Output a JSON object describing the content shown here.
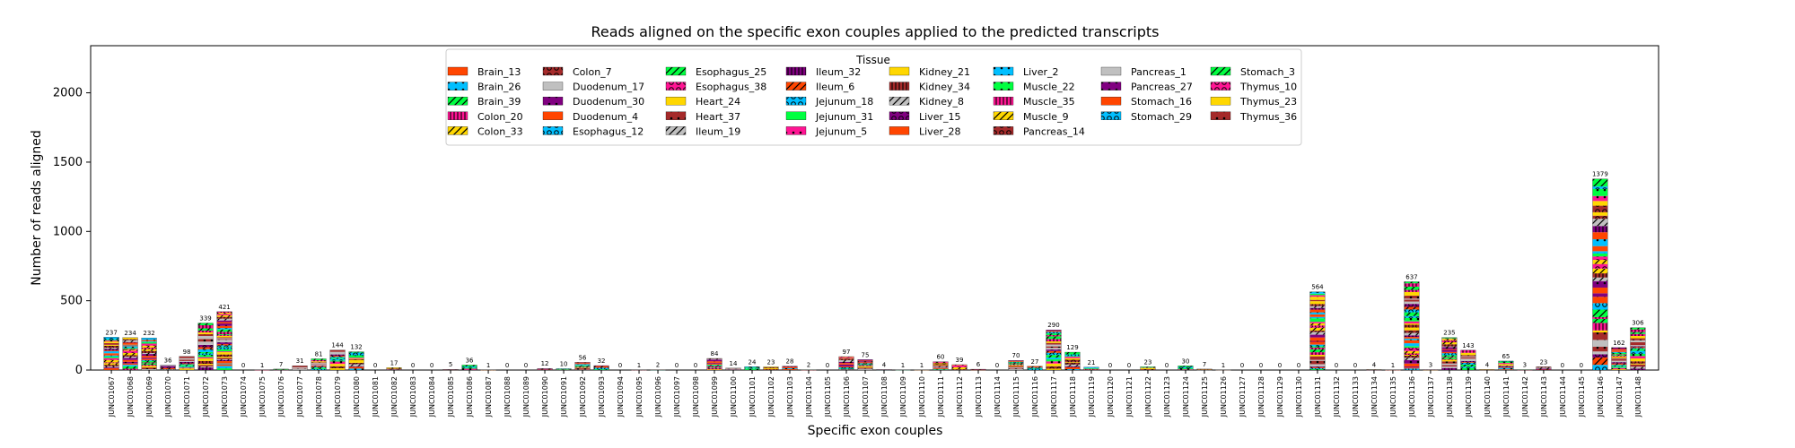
{
  "chart_data": {
    "type": "bar",
    "stacked": true,
    "title": "Reads aligned on the specific exon couples applied to the predicted transcripts",
    "xlabel": "Specific exon couples",
    "ylabel": "Number of reads aligned",
    "ylim": [
      0,
      2340
    ],
    "yticks": [
      0,
      500,
      1000,
      1500,
      2000
    ],
    "legend_title": "Tissue",
    "legend_position": "top-center",
    "categories": [
      "JUNC01067",
      "JUNC01068",
      "JUNC01069",
      "JUNC01070",
      "JUNC01071",
      "JUNC01072",
      "JUNC01073",
      "JUNC01074",
      "JUNC01075",
      "JUNC01076",
      "JUNC01077",
      "JUNC01078",
      "JUNC01079",
      "JUNC01080",
      "JUNC01081",
      "JUNC01082",
      "JUNC01083",
      "JUNC01084",
      "JUNC01085",
      "JUNC01086",
      "JUNC01087",
      "JUNC01088",
      "JUNC01089",
      "JUNC01090",
      "JUNC01091",
      "JUNC01092",
      "JUNC01093",
      "JUNC01094",
      "JUNC01095",
      "JUNC01096",
      "JUNC01097",
      "JUNC01098",
      "JUNC01099",
      "JUNC01100",
      "JUNC01101",
      "JUNC01102",
      "JUNC01103",
      "JUNC01104",
      "JUNC01105",
      "JUNC01106",
      "JUNC01107",
      "JUNC01108",
      "JUNC01109",
      "JUNC01110",
      "JUNC01111",
      "JUNC01112",
      "JUNC01113",
      "JUNC01114",
      "JUNC01115",
      "JUNC01116",
      "JUNC01117",
      "JUNC01118",
      "JUNC01119",
      "JUNC01120",
      "JUNC01121",
      "JUNC01122",
      "JUNC01123",
      "JUNC01124",
      "JUNC01125",
      "JUNC01126",
      "JUNC01127",
      "JUNC01128",
      "JUNC01129",
      "JUNC01130",
      "JUNC01131",
      "JUNC01132",
      "JUNC01133",
      "JUNC01134",
      "JUNC01135",
      "JUNC01136",
      "JUNC01137",
      "JUNC01138",
      "JUNC01139",
      "JUNC01140",
      "JUNC01141",
      "JUNC01142",
      "JUNC01143",
      "JUNC01144",
      "JUNC01145",
      "JUNC01146",
      "JUNC01147",
      "JUNC01148"
    ],
    "totals": [
      237,
      234,
      232,
      36,
      98,
      339,
      421,
      0,
      1,
      7,
      31,
      81,
      144,
      132,
      0,
      17,
      0,
      0,
      5,
      36,
      1,
      0,
      0,
      12,
      10,
      56,
      32,
      0,
      1,
      2,
      0,
      0,
      84,
      14,
      24,
      23,
      28,
      2,
      0,
      97,
      75,
      4,
      1,
      1,
      60,
      39,
      6,
      0,
      70,
      27,
      290,
      129,
      21,
      0,
      0,
      23,
      0,
      30,
      7,
      1,
      0,
      0,
      0,
      0,
      564,
      0,
      0,
      4,
      1,
      637,
      3,
      235,
      143,
      4,
      65,
      3,
      23,
      0,
      0,
      1379,
      162,
      306
    ],
    "series": [
      {
        "name": "Brain_13",
        "color": "#ff4500",
        "hatch": ""
      },
      {
        "name": "Brain_26",
        "color": "#00bfff",
        "hatch": "dot"
      },
      {
        "name": "Brain_39",
        "color": "#00ff40",
        "hatch": "slash"
      },
      {
        "name": "Colon_20",
        "color": "#ff1493",
        "hatch": "bar"
      },
      {
        "name": "Colon_33",
        "color": "#ffd700",
        "hatch": "slash"
      },
      {
        "name": "Colon_7",
        "color": "#a52a2a",
        "hatch": "ring"
      },
      {
        "name": "Duodenum_17",
        "color": "#c0c0c0",
        "hatch": ""
      },
      {
        "name": "Duodenum_30",
        "color": "#800080",
        "hatch": "dot"
      },
      {
        "name": "Duodenum_4",
        "color": "#ff4500",
        "hatch": ""
      },
      {
        "name": "Esophagus_12",
        "color": "#00bfff",
        "hatch": "ring"
      },
      {
        "name": "Esophagus_25",
        "color": "#00ff40",
        "hatch": "slash"
      },
      {
        "name": "Esophagus_38",
        "color": "#ff1493",
        "hatch": "ring"
      },
      {
        "name": "Heart_24",
        "color": "#ffd700",
        "hatch": ""
      },
      {
        "name": "Heart_37",
        "color": "#a52a2a",
        "hatch": "dot"
      },
      {
        "name": "Ileum_19",
        "color": "#c0c0c0",
        "hatch": "slash"
      },
      {
        "name": "Ileum_32",
        "color": "#800080",
        "hatch": "bar"
      },
      {
        "name": "Ileum_6",
        "color": "#ff4500",
        "hatch": "slash"
      },
      {
        "name": "Jejunum_18",
        "color": "#00bfff",
        "hatch": "ring"
      },
      {
        "name": "Jejunum_31",
        "color": "#00ff40",
        "hatch": ""
      },
      {
        "name": "Jejunum_5",
        "color": "#ff1493",
        "hatch": "dot"
      },
      {
        "name": "Kidney_21",
        "color": "#ffd700",
        "hatch": ""
      },
      {
        "name": "Kidney_34",
        "color": "#a52a2a",
        "hatch": "bar"
      },
      {
        "name": "Kidney_8",
        "color": "#c0c0c0",
        "hatch": "slash"
      },
      {
        "name": "Liver_15",
        "color": "#800080",
        "hatch": "ring"
      },
      {
        "name": "Liver_28",
        "color": "#ff4500",
        "hatch": ""
      },
      {
        "name": "Liver_2",
        "color": "#00bfff",
        "hatch": "dot"
      },
      {
        "name": "Muscle_22",
        "color": "#00ff40",
        "hatch": "dot"
      },
      {
        "name": "Muscle_35",
        "color": "#ff1493",
        "hatch": "bar"
      },
      {
        "name": "Muscle_9",
        "color": "#ffd700",
        "hatch": "slash"
      },
      {
        "name": "Pancreas_14",
        "color": "#a52a2a",
        "hatch": "ring"
      },
      {
        "name": "Pancreas_1",
        "color": "#c0c0c0",
        "hatch": ""
      },
      {
        "name": "Pancreas_27",
        "color": "#800080",
        "hatch": "dot"
      },
      {
        "name": "Stomach_16",
        "color": "#ff4500",
        "hatch": ""
      },
      {
        "name": "Stomach_29",
        "color": "#00bfff",
        "hatch": "ring"
      },
      {
        "name": "Stomach_3",
        "color": "#00ff40",
        "hatch": "slash"
      },
      {
        "name": "Thymus_10",
        "color": "#ff1493",
        "hatch": "ring"
      },
      {
        "name": "Thymus_23",
        "color": "#ffd700",
        "hatch": ""
      },
      {
        "name": "Thymus_36",
        "color": "#a52a2a",
        "hatch": "dot"
      }
    ]
  }
}
